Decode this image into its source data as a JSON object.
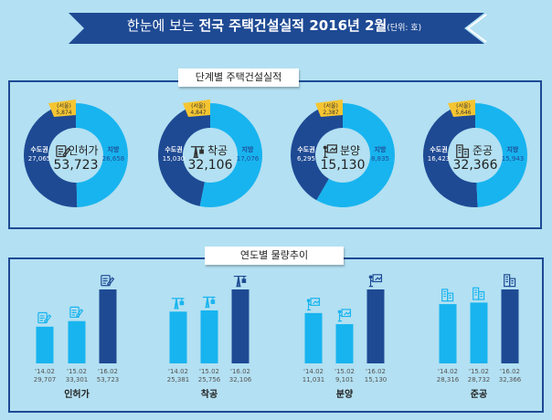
{
  "header": {
    "title_light": "한눈에 보는",
    "title_bold": "전국 주택건설실적 2016년 2월",
    "unit": "(단위: 호)"
  },
  "colors": {
    "banner": "#1e4a94",
    "dark": "#1e4a94",
    "light": "#18b4ef",
    "seoul": "#f5c531",
    "background": "#b3e0f2"
  },
  "section1": {
    "label": "단계별 주택건설실적"
  },
  "section2": {
    "label": "연도별 물량추이"
  },
  "chart_data": [
    {
      "type": "pie",
      "variant": "donut",
      "title": "단계별 주택건설실적",
      "donuts": [
        {
          "name": "인허가",
          "icon": "document-pen-icon",
          "total": "53,723",
          "capital_label": "수도권",
          "capital": 27065,
          "capital_text": "27,065",
          "region_label": "지방",
          "region": 26658,
          "region_text": "26,658",
          "seoul_label": "(서울)",
          "seoul_text": "5,874"
        },
        {
          "name": "착공",
          "icon": "crane-icon",
          "total": "32,106",
          "capital_label": "수도권",
          "capital": 15030,
          "capital_text": "15,030",
          "region_label": "지방",
          "region": 17076,
          "region_text": "17,076",
          "seoul_label": "(서울)",
          "seoul_text": "4,847"
        },
        {
          "name": "분양",
          "icon": "presentation-board-icon",
          "total": "15,130",
          "capital_label": "수도권",
          "capital": 6295,
          "capital_text": "6,295",
          "region_label": "지방",
          "region": 8835,
          "region_text": "8,835",
          "seoul_label": "(서울)",
          "seoul_text": "2,387"
        },
        {
          "name": "준공",
          "icon": "building-icon",
          "total": "32,366",
          "capital_label": "수도권",
          "capital": 16423,
          "capital_text": "16,423",
          "region_label": "지방",
          "region": 15943,
          "region_text": "15,943",
          "seoul_label": "(서울)",
          "seoul_text": "5,646"
        }
      ]
    },
    {
      "type": "bar",
      "title": "연도별 물량추이",
      "groups": [
        {
          "name": "인허가",
          "categories": [
            "'14.02",
            "'15.02",
            "'16.02"
          ],
          "values": [
            29707,
            33301,
            53723
          ],
          "labels": [
            "29,707",
            "33,301",
            "53,723"
          ]
        },
        {
          "name": "착공",
          "categories": [
            "'14.02",
            "'15.02",
            "'16.02"
          ],
          "values": [
            25381,
            25756,
            32106
          ],
          "labels": [
            "25,381",
            "25,756",
            "32,106"
          ]
        },
        {
          "name": "분양",
          "categories": [
            "'14.02",
            "'15.02",
            "'16.02"
          ],
          "values": [
            11031,
            9101,
            15130
          ],
          "labels": [
            "11,031",
            "9,101",
            "15,130"
          ]
        },
        {
          "name": "준공",
          "categories": [
            "'14.02",
            "'15.02",
            "'16.02"
          ],
          "values": [
            28316,
            28732,
            32366
          ],
          "labels": [
            "28,316",
            "28,732",
            "32,366"
          ]
        }
      ]
    }
  ]
}
